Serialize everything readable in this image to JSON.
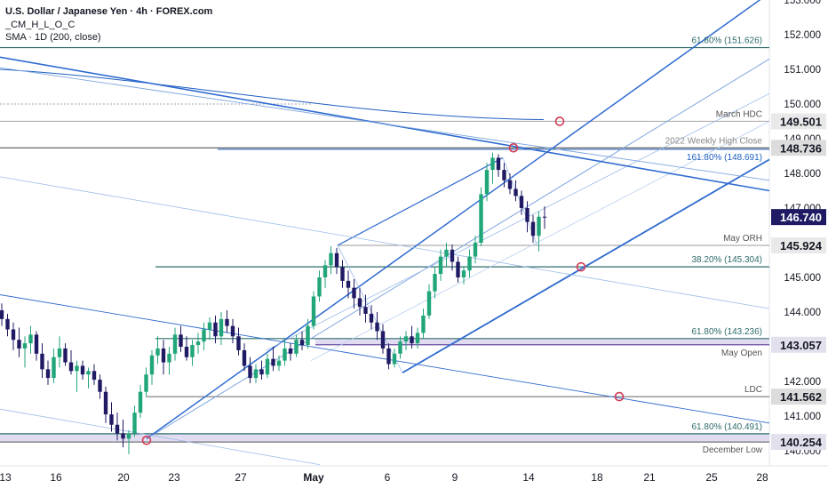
{
  "chart_data": {
    "type": "candlestick",
    "title": "U.S. Dollar / Japanese Yen · 4h · FOREX.com",
    "indicators": [
      "_CM_H_L_O_C",
      "SMA · 1D (200, close)"
    ],
    "x_ticks": [
      "13",
      "16",
      "20",
      "23",
      "27",
      "May",
      "6",
      "9",
      "14",
      "18",
      "21",
      "25",
      "28"
    ],
    "y_ticks": [
      140.0,
      141.0,
      142.0,
      143.0,
      144.0,
      145.0,
      146.0,
      147.0,
      148.0,
      149.0,
      150.0,
      151.0,
      152.0,
      153.0
    ],
    "ylim": [
      139.87,
      153.1
    ],
    "current_price": "146.740",
    "price_labels": [
      "149.501",
      "148.736",
      "146.740",
      "145.924",
      "143.057",
      "141.562",
      "140.254"
    ],
    "annotations": [
      "61.80% (151.626)",
      "March HDC",
      "2022 Weekly High Close",
      "161.80% (148.691)",
      "May ORH",
      "38.20% (145.304)",
      "61.80% (143.236)",
      "May Open",
      "LDC",
      "61.80% (140.491)",
      "December Low"
    ],
    "candles_ohlc": [
      [
        144.05,
        144.25,
        143.6,
        143.8
      ],
      [
        143.8,
        143.95,
        143.3,
        143.5
      ],
      [
        143.5,
        143.7,
        142.9,
        143.2
      ],
      [
        143.2,
        143.55,
        142.7,
        142.95
      ],
      [
        142.95,
        143.3,
        142.4,
        143.1
      ],
      [
        143.1,
        143.6,
        142.8,
        143.35
      ],
      [
        143.35,
        143.45,
        142.6,
        142.8
      ],
      [
        142.8,
        143.1,
        142.1,
        142.35
      ],
      [
        142.35,
        142.6,
        141.9,
        142.1
      ],
      [
        142.1,
        142.95,
        141.95,
        142.7
      ],
      [
        142.7,
        143.3,
        142.4,
        142.95
      ],
      [
        142.95,
        143.1,
        142.45,
        142.55
      ],
      [
        142.55,
        142.9,
        142.2,
        142.3
      ],
      [
        142.3,
        142.6,
        141.7,
        142.45
      ],
      [
        142.45,
        142.6,
        142.05,
        142.2
      ],
      [
        142.2,
        142.4,
        141.8,
        142.3
      ],
      [
        142.3,
        142.5,
        141.9,
        142.05
      ],
      [
        142.05,
        142.2,
        141.5,
        141.7
      ],
      [
        141.7,
        141.85,
        140.8,
        141.05
      ],
      [
        141.05,
        141.4,
        140.55,
        140.75
      ],
      [
        140.75,
        141.1,
        140.3,
        140.5
      ],
      [
        140.5,
        140.9,
        140.1,
        140.35
      ],
      [
        140.35,
        140.6,
        139.9,
        140.5
      ],
      [
        140.5,
        141.3,
        140.4,
        141.1
      ],
      [
        141.1,
        141.9,
        140.95,
        141.7
      ],
      [
        141.7,
        142.4,
        141.55,
        142.2
      ],
      [
        142.2,
        142.9,
        141.9,
        142.75
      ],
      [
        142.75,
        143.3,
        142.5,
        142.95
      ],
      [
        142.95,
        143.2,
        142.2,
        142.55
      ],
      [
        142.55,
        143.0,
        142.2,
        142.8
      ],
      [
        142.8,
        143.55,
        142.6,
        143.35
      ],
      [
        143.35,
        143.6,
        142.85,
        143.0
      ],
      [
        143.0,
        143.3,
        142.6,
        142.7
      ],
      [
        142.7,
        143.2,
        142.45,
        143.05
      ],
      [
        143.05,
        143.4,
        142.8,
        143.15
      ],
      [
        143.15,
        143.7,
        142.9,
        143.5
      ],
      [
        143.5,
        143.85,
        143.2,
        143.7
      ],
      [
        143.7,
        143.9,
        143.1,
        143.3
      ],
      [
        143.3,
        144.0,
        143.05,
        143.8
      ],
      [
        143.8,
        144.05,
        143.4,
        143.6
      ],
      [
        143.6,
        143.8,
        143.1,
        143.3
      ],
      [
        143.3,
        143.55,
        142.75,
        142.9
      ],
      [
        142.9,
        143.1,
        142.3,
        142.45
      ],
      [
        142.45,
        142.7,
        141.95,
        142.1
      ],
      [
        142.1,
        142.5,
        141.95,
        142.35
      ],
      [
        142.35,
        142.6,
        142.05,
        142.2
      ],
      [
        142.2,
        142.8,
        142.1,
        142.65
      ],
      [
        142.65,
        143.0,
        142.3,
        142.45
      ],
      [
        142.45,
        142.75,
        142.3,
        142.6
      ],
      [
        142.6,
        143.2,
        142.45,
        142.95
      ],
      [
        142.95,
        143.1,
        142.6,
        142.8
      ],
      [
        142.8,
        143.35,
        142.7,
        143.2
      ],
      [
        143.2,
        143.45,
        142.9,
        143.05
      ],
      [
        143.05,
        143.8,
        142.95,
        143.6
      ],
      [
        143.6,
        144.6,
        143.5,
        144.45
      ],
      [
        144.45,
        145.2,
        144.3,
        145.0
      ],
      [
        145.0,
        145.5,
        144.7,
        145.35
      ],
      [
        145.35,
        145.9,
        145.1,
        145.7
      ],
      [
        145.7,
        145.85,
        145.1,
        145.3
      ],
      [
        145.3,
        145.5,
        144.7,
        144.9
      ],
      [
        144.9,
        145.2,
        144.4,
        144.7
      ],
      [
        144.7,
        144.95,
        144.1,
        144.4
      ],
      [
        144.4,
        144.7,
        143.9,
        144.15
      ],
      [
        144.15,
        144.5,
        143.7,
        143.95
      ],
      [
        143.95,
        144.2,
        143.5,
        143.7
      ],
      [
        143.7,
        144.0,
        143.2,
        143.45
      ],
      [
        143.45,
        143.65,
        142.8,
        142.95
      ],
      [
        142.95,
        143.1,
        142.35,
        142.5
      ],
      [
        142.5,
        142.95,
        142.4,
        142.8
      ],
      [
        142.8,
        143.3,
        142.65,
        143.15
      ],
      [
        143.15,
        143.45,
        142.9,
        143.3
      ],
      [
        143.3,
        143.6,
        142.95,
        143.1
      ],
      [
        143.1,
        143.55,
        142.95,
        143.4
      ],
      [
        143.4,
        144.1,
        143.25,
        143.9
      ],
      [
        143.9,
        144.8,
        143.8,
        144.6
      ],
      [
        144.6,
        145.3,
        144.4,
        145.1
      ],
      [
        145.1,
        145.8,
        144.9,
        145.6
      ],
      [
        145.6,
        146.0,
        145.3,
        145.8
      ],
      [
        145.8,
        145.95,
        145.2,
        145.45
      ],
      [
        145.45,
        145.6,
        144.85,
        145.0
      ],
      [
        145.0,
        145.3,
        144.8,
        145.2
      ],
      [
        145.2,
        145.8,
        145.0,
        145.6
      ],
      [
        145.6,
        146.2,
        145.4,
        146.0
      ],
      [
        146.0,
        147.6,
        145.9,
        147.4
      ],
      [
        147.4,
        148.3,
        147.2,
        148.1
      ],
      [
        148.1,
        148.6,
        147.7,
        148.45
      ],
      [
        148.45,
        148.55,
        147.9,
        148.1
      ],
      [
        148.1,
        148.3,
        147.6,
        147.8
      ],
      [
        147.8,
        148.0,
        147.4,
        147.55
      ],
      [
        147.55,
        147.8,
        147.2,
        147.35
      ],
      [
        147.35,
        147.5,
        146.8,
        147.0
      ],
      [
        147.0,
        147.2,
        146.3,
        146.6
      ],
      [
        146.6,
        146.8,
        146.0,
        146.2
      ],
      [
        146.2,
        146.9,
        145.75,
        146.75
      ],
      [
        146.75,
        147.05,
        146.4,
        146.74
      ]
    ]
  }
}
